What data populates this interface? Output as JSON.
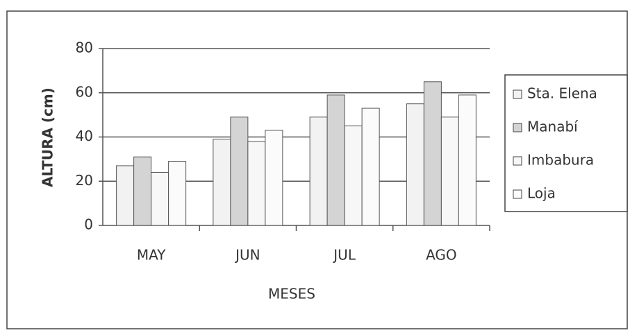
{
  "chart_data": {
    "type": "bar",
    "categories": [
      "MAY",
      "JUN",
      "JUL",
      "AGO"
    ],
    "series": [
      {
        "name": "Sta. Elena",
        "color": "#f2f2f2",
        "values": [
          27,
          39,
          49,
          55
        ]
      },
      {
        "name": "Manabí",
        "color": "#d4d4d4",
        "values": [
          31,
          49,
          59,
          65
        ]
      },
      {
        "name": "Imbabura",
        "color": "#f7f7f7",
        "values": [
          24,
          38,
          45,
          49
        ]
      },
      {
        "name": "Loja",
        "color": "#fbfbfb",
        "values": [
          29,
          43,
          53,
          59
        ]
      }
    ],
    "xlabel": "MESES",
    "ylabel": "ALTURA (cm)",
    "ylim": [
      0,
      80
    ],
    "yticks": [
      0,
      20,
      40,
      60,
      80
    ],
    "grid": true,
    "legend": "right"
  }
}
